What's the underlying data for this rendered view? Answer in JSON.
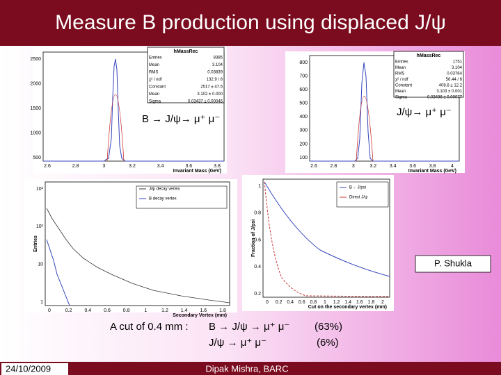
{
  "header": {
    "title": "Measure B production using displaced J/ψ"
  },
  "panels": [
    {
      "stats_title": "hMassRec",
      "stats": [
        [
          "Entries",
          "8385"
        ],
        [
          "Mean",
          "3.104"
        ],
        [
          "RMS",
          "0.03839"
        ],
        [
          "χ² / ndf",
          "132.9 / 8"
        ],
        [
          "Constant",
          "2517 ± 47.5"
        ],
        [
          "Mean",
          "3.102 ± 0.000"
        ],
        [
          "Sigma",
          "0.03437 ± 0.00045"
        ]
      ],
      "yticks": [
        "2500",
        "2000",
        "1500",
        "1000",
        "500"
      ],
      "xticks": [
        "2.6",
        "2.8",
        "3",
        "3.2",
        "3.4",
        "3.6",
        "3.8"
      ],
      "xlabel": "Invariant Mass (GeV)",
      "label": "B → J/ψ→ μ⁺ μ⁻"
    },
    {
      "stats_title": "hMassRec",
      "stats": [
        [
          "Entries",
          "1751"
        ],
        [
          "Mean",
          "3.104"
        ],
        [
          "RMS",
          "0.03764"
        ],
        [
          "χ² / ndf",
          "56.44 / 6"
        ],
        [
          "Constant",
          "408.8 ± 12.2"
        ],
        [
          "Mean",
          "3.103 ± 0.001"
        ],
        [
          "Sigma",
          "0.03496 ± 0.00077"
        ]
      ],
      "yticks": [
        "800",
        "700",
        "600",
        "500",
        "400",
        "300",
        "200",
        "100"
      ],
      "xticks": [
        "2.6",
        "2.8",
        "3",
        "3.2",
        "3.4",
        "3.6",
        "3.8",
        "4"
      ],
      "xlabel": "Invariant Mass (GeV)",
      "label": "J/ψ→ μ⁺ μ⁻"
    },
    {
      "legend": [
        "J/ψ decay vertex",
        "B decay vertex"
      ],
      "yticks": [
        "10³",
        "10²",
        "10",
        "1"
      ],
      "xticks": [
        "0",
        "0.2",
        "0.4",
        "0.6",
        "0.8",
        "1",
        "1.2",
        "1.4",
        "1.6",
        "1.8"
      ],
      "xlabel": "Secondary Vertex (mm)",
      "ylabel": "Entries"
    },
    {
      "legend": [
        "B→ J/psi",
        "Direct J/ψ"
      ],
      "yticks": [
        "1",
        "0.8",
        "0.6",
        "0.4",
        "0.2"
      ],
      "xticks": [
        "0",
        "0.2",
        "0.4",
        "0.6",
        "0.8",
        "1",
        "1.2",
        "1.4",
        "1.6",
        "1.8",
        "2"
      ],
      "xlabel": "Cut on the secondary vertex (mm)",
      "ylabel": "Fraction of J/psi"
    }
  ],
  "credit": "P. Shukla",
  "result": {
    "intro": "A cut of 0.4 mm :",
    "lines": [
      [
        "B → J/ψ → μ⁺ μ⁻",
        "(63%)"
      ],
      [
        "J/ψ → μ⁺ μ⁻",
        "(6%)"
      ]
    ]
  },
  "footer": {
    "date": "24/10/2009",
    "author": "Dipak Mishra, BARC"
  }
}
